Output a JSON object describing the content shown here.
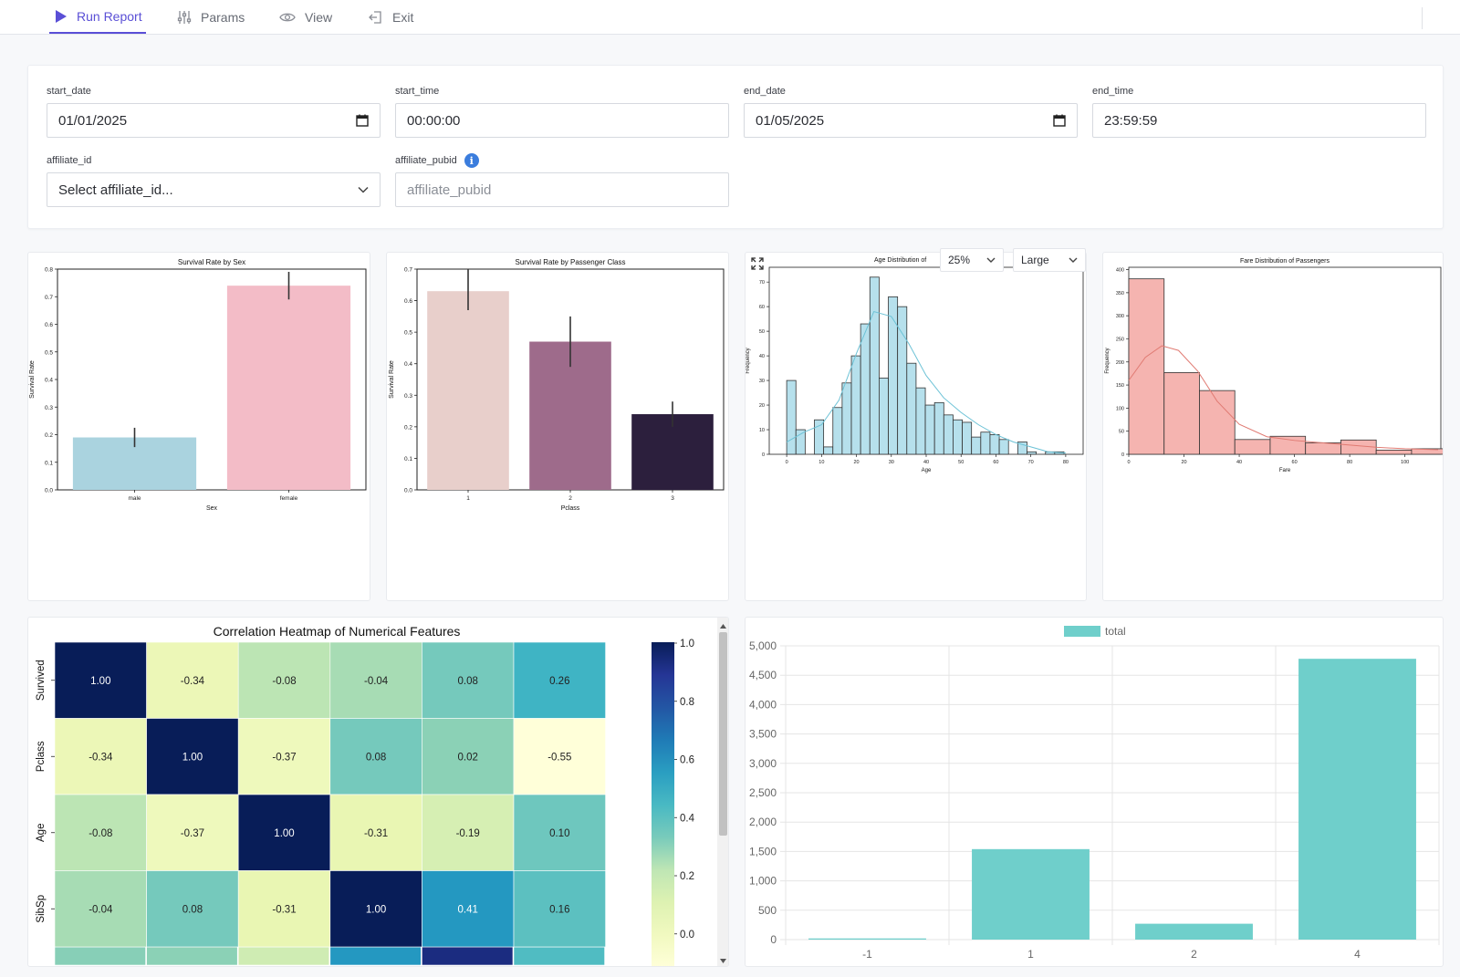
{
  "toolbar": {
    "run_report": "Run Report",
    "params": "Params",
    "view": "View",
    "exit": "Exit"
  },
  "params": {
    "start_date": {
      "label": "start_date",
      "value": "01/01/2025"
    },
    "start_time": {
      "label": "start_time",
      "value": "00:00:00"
    },
    "end_date": {
      "label": "end_date",
      "value": "01/05/2025"
    },
    "end_time": {
      "label": "end_time",
      "value": "23:59:59"
    },
    "affiliate_id": {
      "label": "affiliate_id",
      "placeholder": "Select affiliate_id..."
    },
    "affiliate_pubid": {
      "label": "affiliate_pubid",
      "placeholder": "affiliate_pubid",
      "info": "i"
    }
  },
  "view_controls": {
    "zoom": "25%",
    "size": "Large"
  },
  "colors": {
    "accent": "#5a4fd6",
    "male": "#aad3df",
    "female": "#f3bcc7",
    "teal": "#6fcfcb",
    "age_hist": "#b6e0ec",
    "fare_hist": "#f5b4b0"
  },
  "chart_data": [
    {
      "type": "bar",
      "title": "Survival Rate by Sex",
      "xlabel": "Sex",
      "ylabel": "Survival Rate",
      "categories": [
        "male",
        "female"
      ],
      "values": [
        0.19,
        0.74
      ],
      "errors": [
        [
          0.155,
          0.225
        ],
        [
          0.69,
          0.79
        ]
      ],
      "ylim": [
        0,
        0.8
      ],
      "yticks": [
        "0.0",
        "0.1",
        "0.2",
        "0.3",
        "0.4",
        "0.5",
        "0.6",
        "0.7",
        "0.8"
      ]
    },
    {
      "type": "bar",
      "title": "Survival Rate by Passenger Class",
      "xlabel": "Pclass",
      "ylabel": "Survival Rate",
      "categories": [
        "1",
        "2",
        "3"
      ],
      "values": [
        0.63,
        0.47,
        0.24
      ],
      "errors": [
        [
          0.57,
          0.7
        ],
        [
          0.39,
          0.55
        ],
        [
          0.2,
          0.28
        ]
      ],
      "ylim": [
        0,
        0.7
      ],
      "yticks": [
        "0.0",
        "0.1",
        "0.2",
        "0.3",
        "0.4",
        "0.5",
        "0.6",
        "0.7"
      ]
    },
    {
      "type": "bar",
      "title": "Age Distribution of",
      "xlabel": "Age",
      "ylabel": "Frequency",
      "bin_start": 0,
      "bin_width": 2.65,
      "values": [
        30,
        10,
        0,
        14,
        3,
        19,
        29,
        40,
        53,
        72,
        31,
        64,
        60,
        37,
        27,
        20,
        21,
        16,
        14,
        13,
        7,
        9,
        8,
        6,
        0,
        5,
        1,
        0,
        1,
        1
      ],
      "kde": [
        [
          0,
          5
        ],
        [
          5,
          9
        ],
        [
          10,
          12
        ],
        [
          15,
          22
        ],
        [
          20,
          41
        ],
        [
          25,
          58
        ],
        [
          30,
          56
        ],
        [
          35,
          45
        ],
        [
          40,
          32
        ],
        [
          45,
          23
        ],
        [
          50,
          17
        ],
        [
          55,
          12
        ],
        [
          60,
          8
        ],
        [
          65,
          5
        ],
        [
          70,
          3
        ],
        [
          75,
          1
        ],
        [
          80,
          0.5
        ]
      ],
      "xlim": [
        -5,
        85
      ],
      "ylim": [
        0,
        76
      ],
      "xticks": [
        "0",
        "10",
        "20",
        "30",
        "40",
        "50",
        "60",
        "70",
        "80"
      ],
      "yticks": [
        "0",
        "10",
        "20",
        "30",
        "40",
        "50",
        "60",
        "70"
      ]
    },
    {
      "type": "bar",
      "title": "Fare Distribution of Passengers",
      "xlabel": "Fare",
      "ylabel": "Frequency",
      "bin_start": 0,
      "bin_width": 12.8,
      "values": [
        380,
        177,
        138,
        32,
        39,
        25,
        31,
        9,
        12
      ],
      "kde": [
        [
          0,
          160
        ],
        [
          6,
          210
        ],
        [
          12,
          235
        ],
        [
          18,
          225
        ],
        [
          25,
          180
        ],
        [
          32,
          115
        ],
        [
          40,
          65
        ],
        [
          50,
          38
        ],
        [
          60,
          30
        ],
        [
          70,
          25
        ],
        [
          80,
          20
        ],
        [
          90,
          15
        ],
        [
          100,
          12
        ],
        [
          112,
          10
        ]
      ],
      "xlim": [
        0,
        113
      ],
      "ylim": [
        0,
        405
      ],
      "xticks": [
        "0",
        "20",
        "40",
        "60",
        "80",
        "100"
      ],
      "yticks": [
        "0",
        "50",
        "100",
        "150",
        "200",
        "250",
        "300",
        "350",
        "400"
      ]
    },
    {
      "type": "heatmap",
      "title": "Correlation Heatmap of Numerical Features",
      "rows": [
        "Survived",
        "Pclass",
        "Age",
        "SibSp"
      ],
      "values": [
        [
          1.0,
          -0.34,
          -0.08,
          -0.04,
          0.08,
          0.26
        ],
        [
          -0.34,
          1.0,
          -0.37,
          0.08,
          0.02,
          -0.55
        ],
        [
          -0.08,
          -0.37,
          1.0,
          -0.31,
          -0.19,
          0.1
        ],
        [
          -0.04,
          0.08,
          -0.31,
          1.0,
          0.41,
          0.16
        ]
      ],
      "labels": [
        [
          "1.00",
          "-0.34",
          "-0.08",
          "-0.04",
          "0.08",
          "0.26"
        ],
        [
          "-0.34",
          "1.00",
          "-0.37",
          "0.08",
          "0.02",
          "-0.55"
        ],
        [
          "-0.08",
          "-0.37",
          "1.00",
          "-0.31",
          "-0.19",
          "0.10"
        ],
        [
          "-0.04",
          "0.08",
          "-0.31",
          "1.00",
          "0.41",
          "0.16"
        ]
      ],
      "colorbar_ticks": [
        "1.0",
        "0.8",
        "0.6",
        "0.4",
        "0.2",
        "0.0"
      ]
    },
    {
      "type": "bar",
      "legend": "total",
      "categories": [
        "-1",
        "1",
        "2",
        "4"
      ],
      "values": [
        20,
        1540,
        270,
        4780
      ],
      "ylim": [
        0,
        5000
      ],
      "yticks": [
        "0",
        "500",
        "1,000",
        "1,500",
        "2,000",
        "2,500",
        "3,000",
        "3,500",
        "4,000",
        "4,500",
        "5,000"
      ]
    }
  ]
}
